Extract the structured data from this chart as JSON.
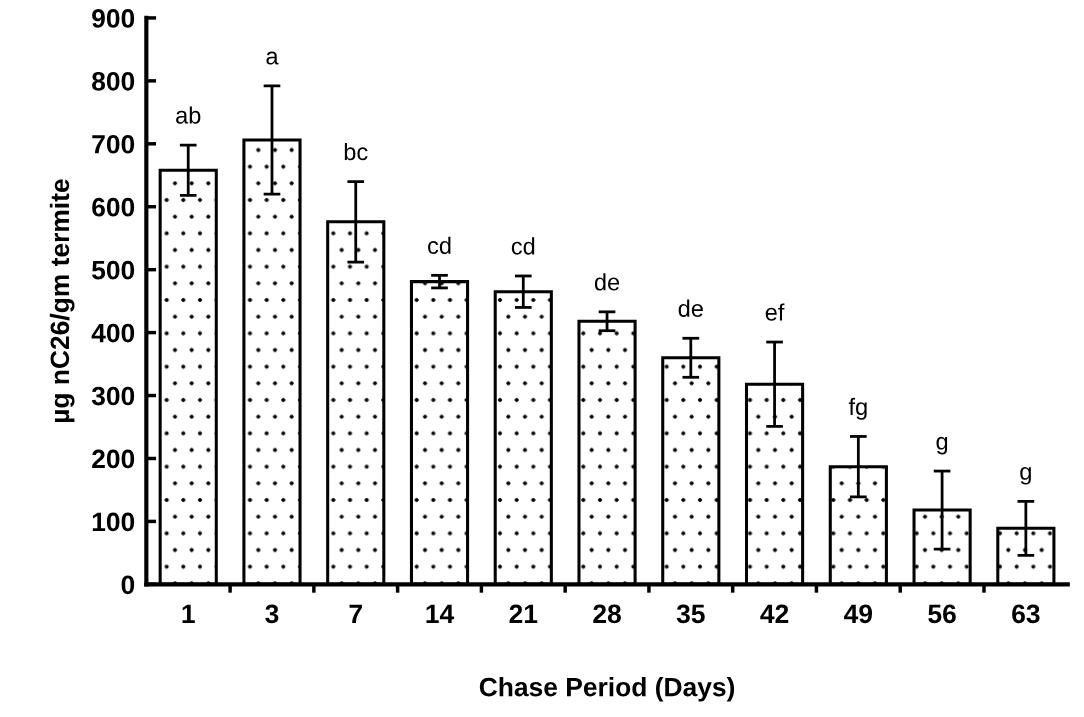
{
  "chart_data": {
    "type": "bar",
    "xlabel": "Chase Period (Days)",
    "ylabel": "µg nC26/gm termite",
    "categories": [
      "1",
      "3",
      "7",
      "14",
      "21",
      "28",
      "35",
      "42",
      "49",
      "56",
      "63"
    ],
    "values": [
      658,
      706,
      576,
      481,
      465,
      418,
      360,
      318,
      187,
      118,
      89
    ],
    "errors": [
      40,
      86,
      64,
      10,
      25,
      15,
      31,
      67,
      48,
      62,
      43
    ],
    "color": "#000000",
    "ylim": [
      0,
      900
    ],
    "yticks": [
      0,
      100,
      200,
      300,
      400,
      500,
      600,
      700,
      800,
      900
    ],
    "grid": false,
    "annotations": [
      "ab",
      "a",
      "bc",
      "cd",
      "cd",
      "de",
      "de",
      "ef",
      "fg",
      "g",
      "g"
    ]
  }
}
